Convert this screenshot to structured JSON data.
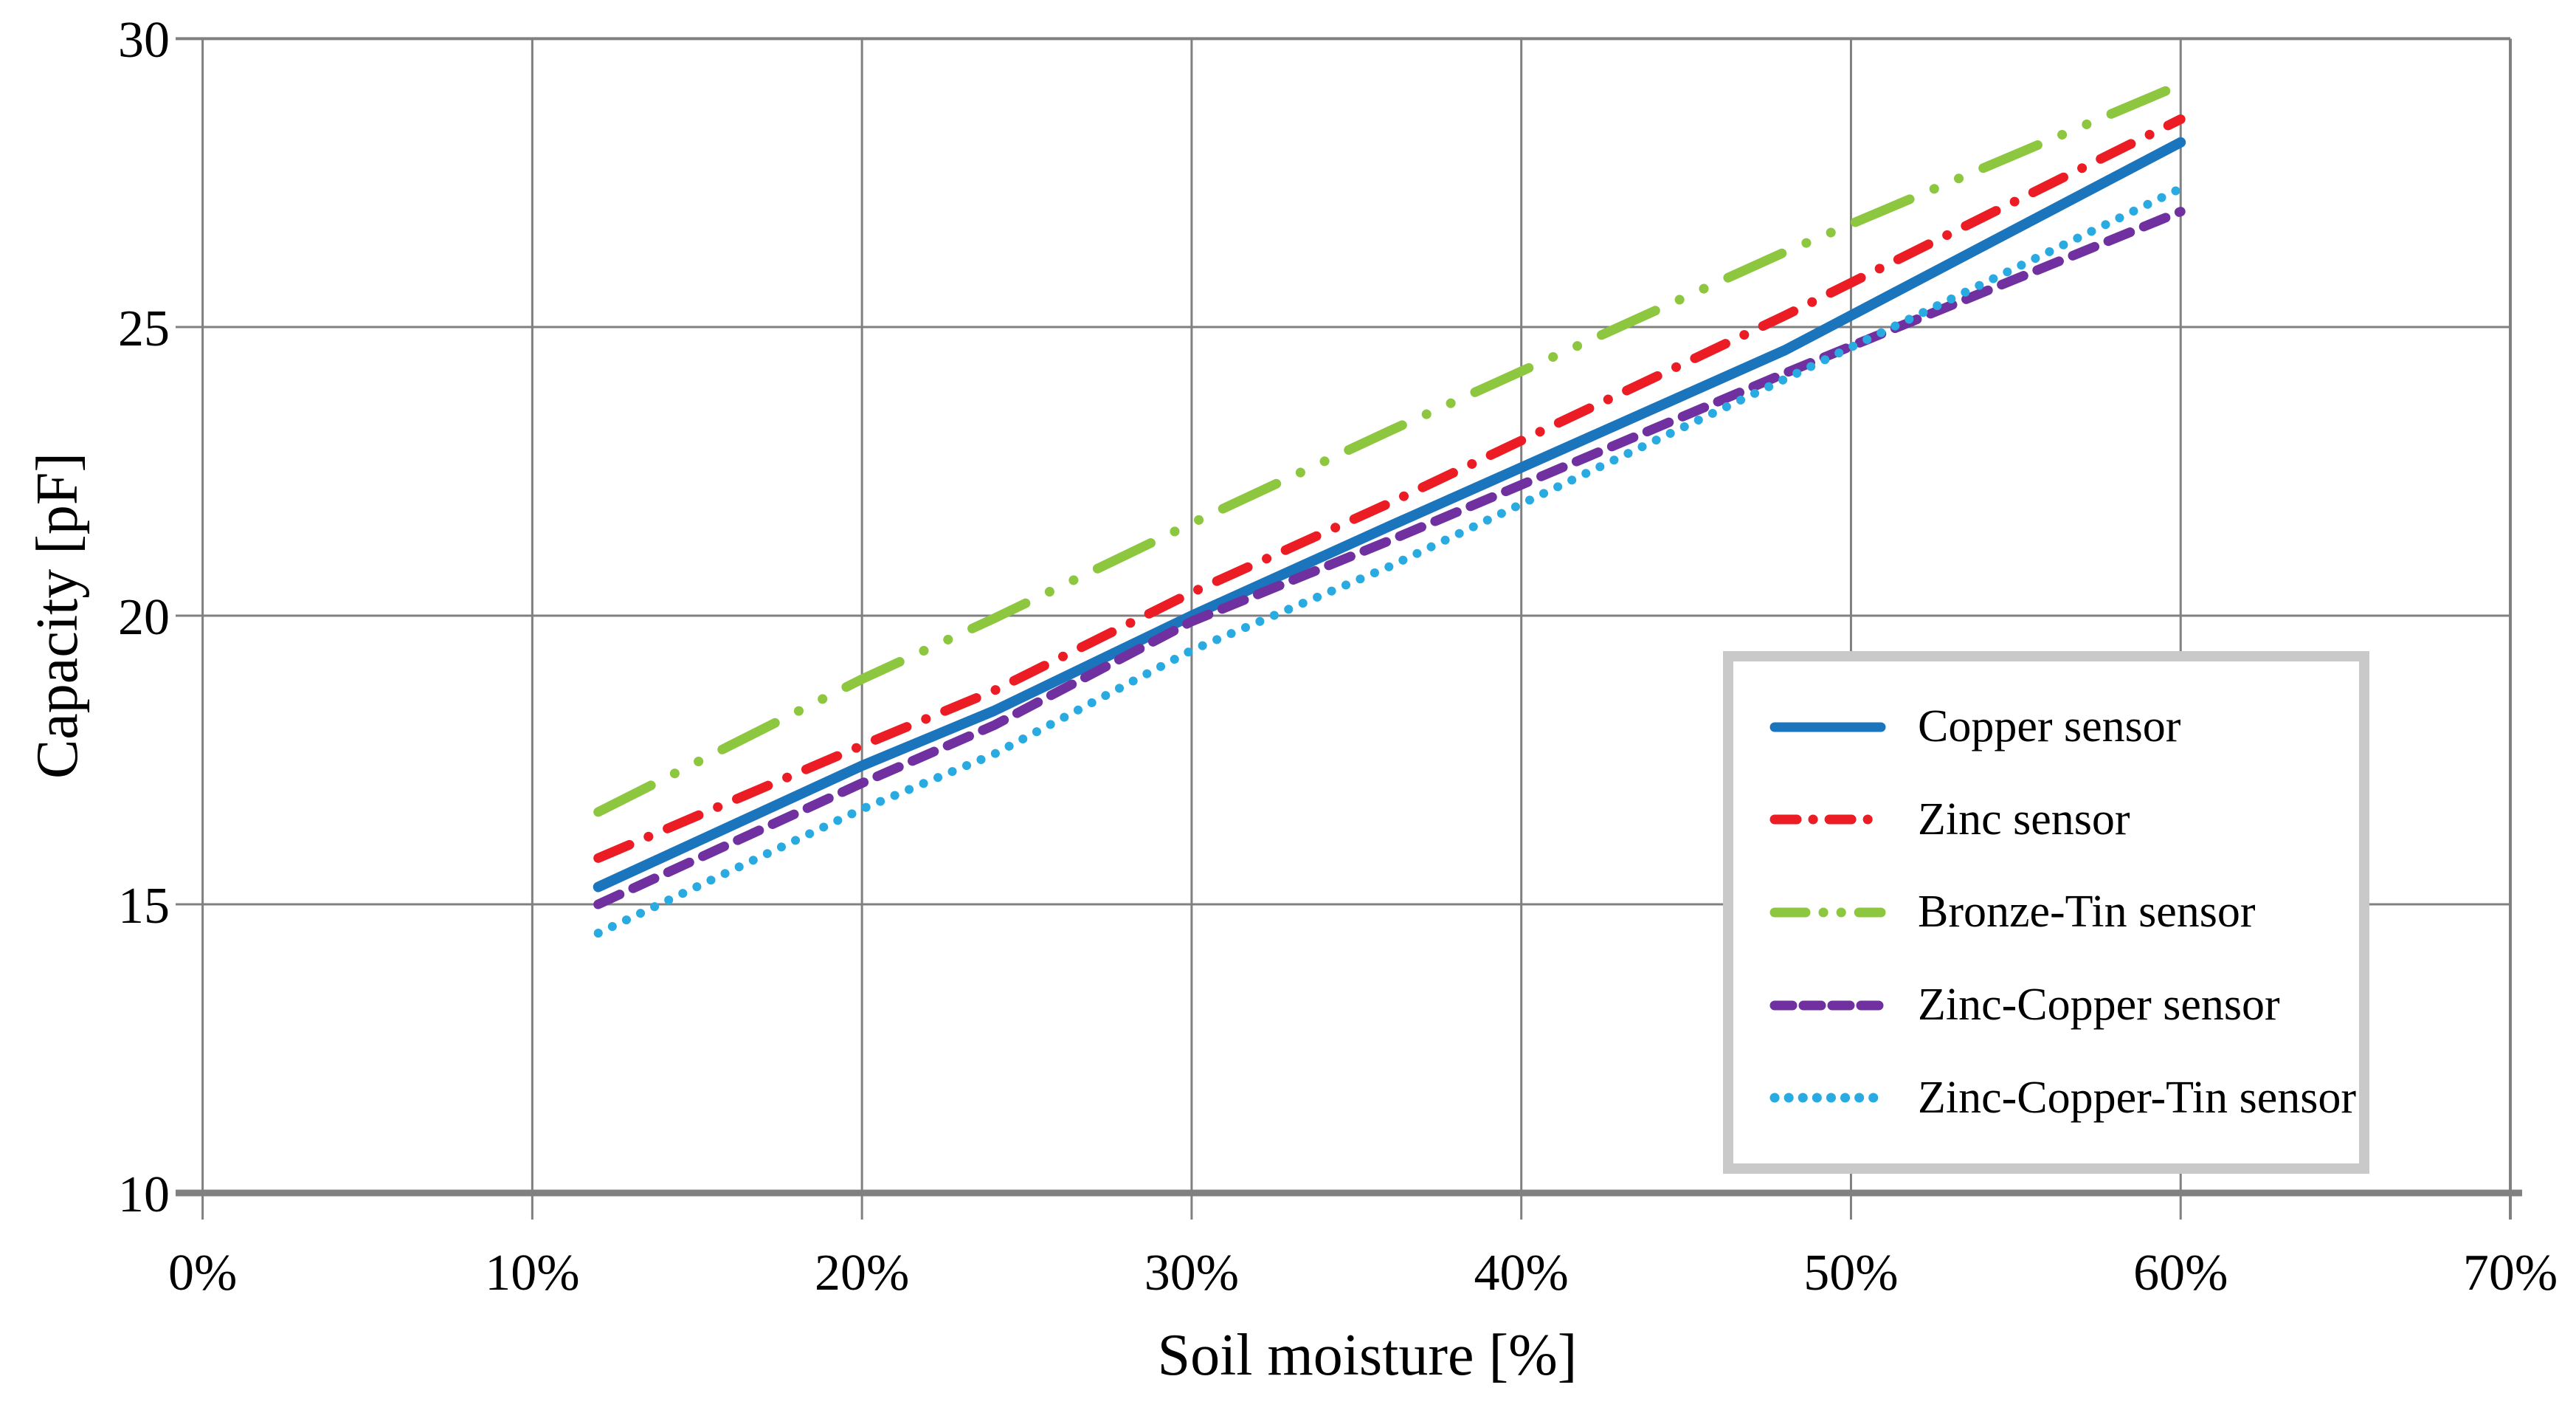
{
  "chart_data": {
    "type": "line",
    "title": "",
    "xlabel": "Soil moisture [%]",
    "ylabel": "Capacity [pF]",
    "xlim": [
      0,
      70
    ],
    "ylim": [
      10,
      30
    ],
    "grid": true,
    "legend_position": "inside-right",
    "x_ticks": [
      {
        "label": "0%",
        "value": 0
      },
      {
        "label": "10%",
        "value": 10
      },
      {
        "label": "20%",
        "value": 20
      },
      {
        "label": "30%",
        "value": 30
      },
      {
        "label": "40%",
        "value": 40
      },
      {
        "label": "50%",
        "value": 50
      },
      {
        "label": "60%",
        "value": 60
      },
      {
        "label": "70%",
        "value": 70
      }
    ],
    "y_ticks": [
      {
        "label": "10",
        "value": 10
      },
      {
        "label": "15",
        "value": 15
      },
      {
        "label": "20",
        "value": 20
      },
      {
        "label": "25",
        "value": 25
      },
      {
        "label": "30",
        "value": 30
      }
    ],
    "series": [
      {
        "name": "Copper sensor",
        "color": "#1B75BC",
        "style": "solid",
        "points": [
          [
            12,
            15.3
          ],
          [
            20,
            17.4
          ],
          [
            24,
            18.35
          ],
          [
            30,
            20.0
          ],
          [
            36,
            21.55
          ],
          [
            48,
            24.6
          ],
          [
            60,
            28.2
          ]
        ]
      },
      {
        "name": "Zinc sensor",
        "color": "#EC1C24",
        "style": "dash-dot",
        "points": [
          [
            12,
            15.8
          ],
          [
            20,
            17.75
          ],
          [
            24,
            18.7
          ],
          [
            30,
            20.4
          ],
          [
            36,
            21.95
          ],
          [
            48,
            25.2
          ],
          [
            60,
            28.6
          ]
        ]
      },
      {
        "name": "Bronze-Tin sensor",
        "color": "#8DC63F",
        "style": "dash-dot-dot",
        "points": [
          [
            12,
            16.6
          ],
          [
            20,
            18.9
          ],
          [
            24,
            19.95
          ],
          [
            30,
            21.6
          ],
          [
            36,
            23.2
          ],
          [
            48,
            26.3
          ],
          [
            60,
            29.2
          ]
        ]
      },
      {
        "name": "Zinc-Copper sensor",
        "color": "#7030A0",
        "style": "dashed",
        "points": [
          [
            12,
            15.0
          ],
          [
            20,
            17.1
          ],
          [
            24,
            18.1
          ],
          [
            30,
            19.9
          ],
          [
            36,
            21.3
          ],
          [
            48,
            24.2
          ],
          [
            60,
            27.0
          ]
        ]
      },
      {
        "name": "Zinc-Copper-Tin sensor",
        "color": "#29ABE2",
        "style": "dotted",
        "points": [
          [
            12,
            14.5
          ],
          [
            20,
            16.65
          ],
          [
            24,
            17.6
          ],
          [
            30,
            19.4
          ],
          [
            36,
            20.85
          ],
          [
            48,
            24.1
          ],
          [
            60,
            27.4
          ]
        ]
      }
    ]
  },
  "colors": {
    "gridline": "#808080",
    "axis_line": "#808080",
    "border_line": "#808080",
    "legend_border": "#C9C9C9",
    "text": "#000000",
    "background": "#FFFFFF"
  }
}
